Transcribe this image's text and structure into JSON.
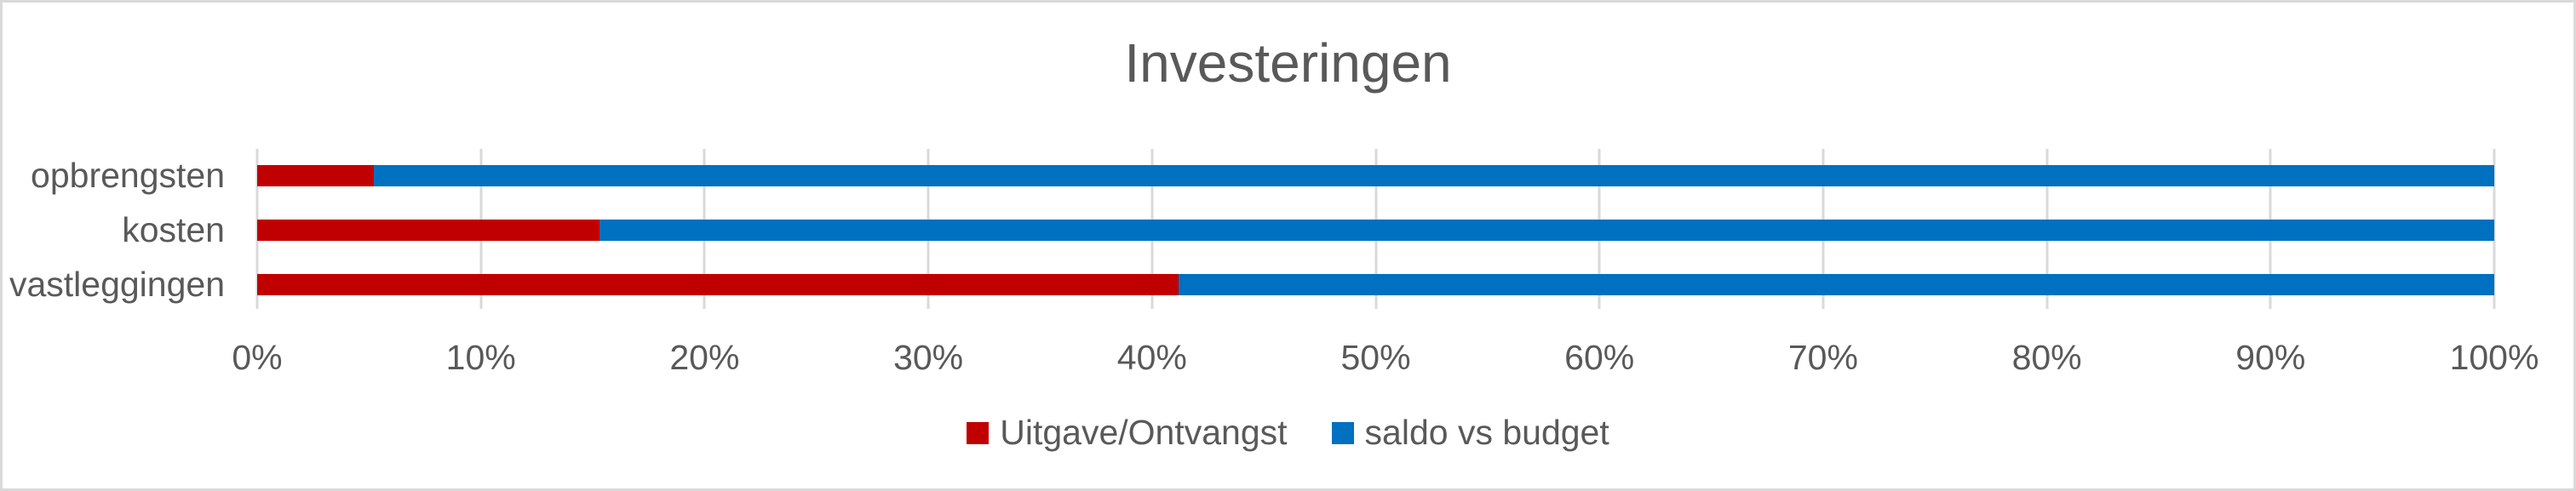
{
  "title": "Investeringen",
  "colors": {
    "uitgave_red": "#C00000",
    "saldo_blue": "#0070C0",
    "gridline": "#D9D9D9",
    "frame_border": "#D9D9D9",
    "text": "#595959",
    "background": "#FFFFFF"
  },
  "chart_data": {
    "type": "bar",
    "orientation": "horizontal",
    "stacked": true,
    "title": "Investeringen",
    "categories": [
      "opbrengsten",
      "kosten",
      "vastleggingen"
    ],
    "series": [
      {
        "name": "Uitgave/Ontvangst",
        "color": "#C00000",
        "values": [
          5.2,
          15.3,
          41.2
        ]
      },
      {
        "name": "saldo vs budget",
        "color": "#0070C0",
        "values": [
          94.8,
          84.7,
          58.8
        ]
      }
    ],
    "x_ticks": [
      "0%",
      "10%",
      "20%",
      "30%",
      "40%",
      "50%",
      "60%",
      "70%",
      "80%",
      "90%",
      "100%"
    ],
    "xlim": [
      0,
      100
    ],
    "xlabel": "",
    "ylabel": "",
    "grid": "vertical",
    "legend_position": "bottom"
  }
}
